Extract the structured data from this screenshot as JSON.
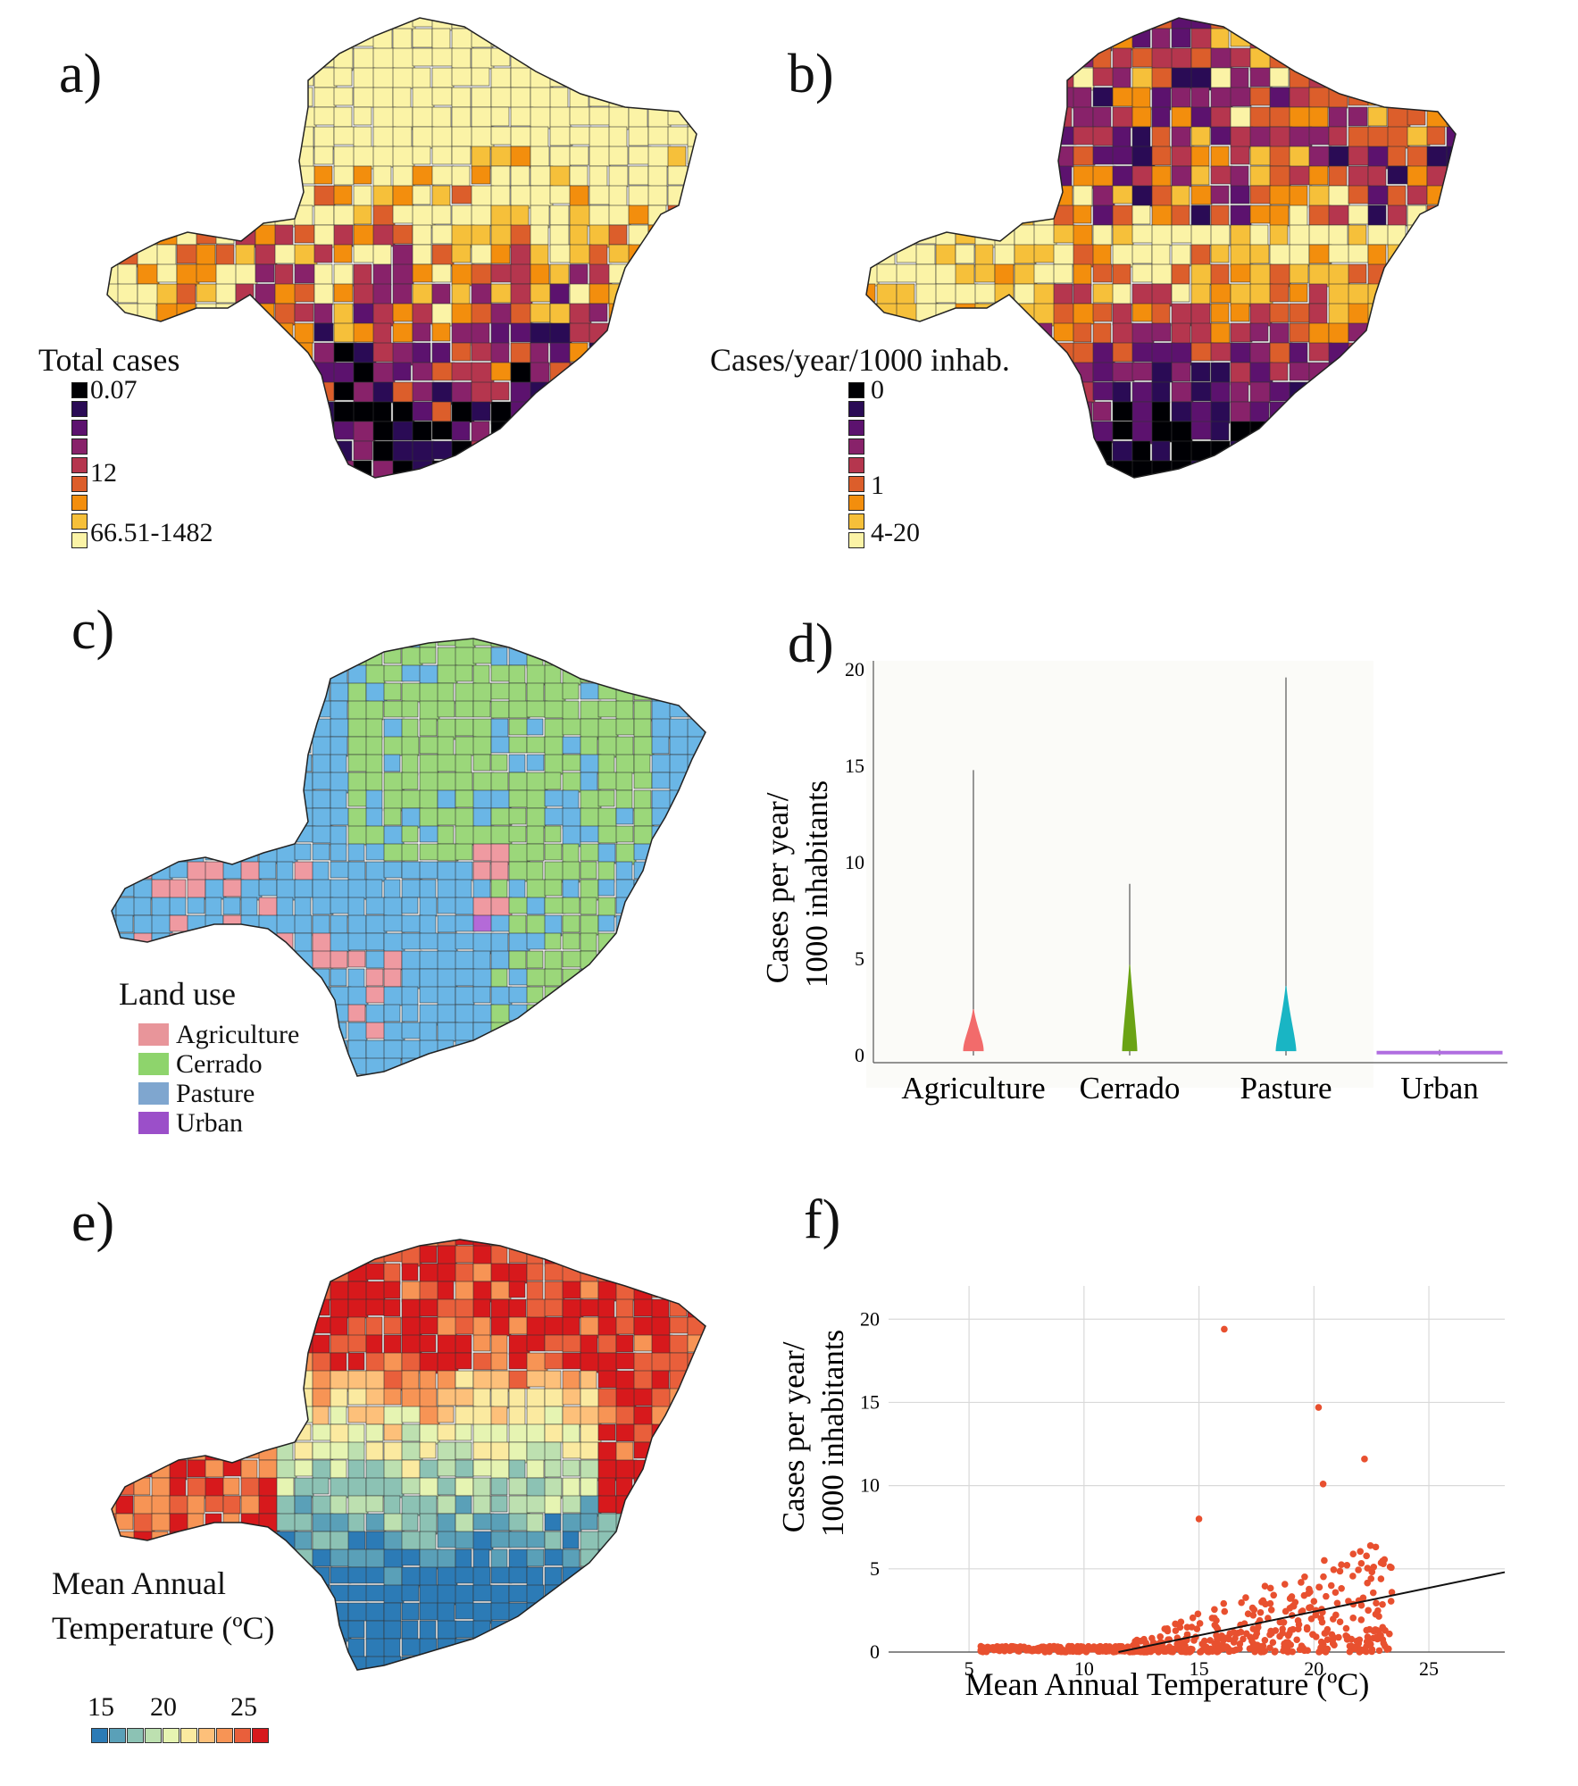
{
  "panels": {
    "a": {
      "label": "a)",
      "legend_title": "Total cases",
      "legend_labels": [
        "0.07",
        "12",
        "66.51-1482"
      ],
      "ramp": [
        "#000004",
        "#2a0b55",
        "#5c126e",
        "#88226a",
        "#b5364e",
        "#dc5e2b",
        "#f38e0d",
        "#f6c03a",
        "#fbf3a6"
      ]
    },
    "b": {
      "label": "b)",
      "legend_title": "Cases/year/1000 inhab.",
      "legend_labels": [
        "0",
        "1",
        "4-20"
      ],
      "ramp": [
        "#000004",
        "#2a0b55",
        "#5c126e",
        "#88226a",
        "#b5364e",
        "#dc5e2b",
        "#f38e0d",
        "#f6c03a",
        "#fbf3a6"
      ]
    },
    "c": {
      "label": "c)",
      "legend_title": "Land use",
      "categories": [
        {
          "name": "Agriculture",
          "color": "#e8959a"
        },
        {
          "name": "Cerrado",
          "color": "#8ed46c"
        },
        {
          "name": "Pasture",
          "color": "#7fa6cf"
        },
        {
          "name": "Urban",
          "color": "#9b4fc9"
        }
      ],
      "map_colors": {
        "pasture": "#6ab6e6",
        "cerrado": "#9bd77a",
        "agriculture": "#ef9aa1",
        "urban": "#b46ad8"
      }
    },
    "d": {
      "label": "d)"
    },
    "e": {
      "label": "e)",
      "legend_title_lines": [
        "Mean Annual",
        "Temperature (ºC)"
      ],
      "legend_labels": [
        "15",
        "20",
        "25"
      ],
      "ramp": [
        "#2c7bb6",
        "#5aa0b8",
        "#8cc2b4",
        "#bde0b0",
        "#e6f4b2",
        "#fbeaa0",
        "#fdc07a",
        "#f79455",
        "#e95f3b",
        "#d7191c"
      ]
    },
    "f": {
      "label": "f)"
    }
  },
  "chart_data": [
    {
      "panel": "d",
      "type": "violin",
      "ylabel_lines": [
        "Cases per year/",
        "1000 inhabitants"
      ],
      "categories": [
        "Agriculture",
        "Cerrado",
        "Pasture",
        "Urban"
      ],
      "colors": [
        "#f26b6b",
        "#6aa314",
        "#19b5c4",
        "#b06ee0"
      ],
      "max_values": [
        14.8,
        8.9,
        19.6,
        0.3
      ],
      "yticks": [
        0,
        5,
        10,
        15,
        20
      ],
      "ylim": [
        0,
        20
      ]
    },
    {
      "panel": "f",
      "type": "scatter",
      "xlabel": "Mean Annual Temperature (ºC)",
      "ylabel_lines": [
        "Cases per year/",
        "1000 inhabitants"
      ],
      "xticks": [
        5,
        10,
        15,
        20,
        25
      ],
      "yticks": [
        0,
        5,
        10,
        15,
        20
      ],
      "xlim": [
        1.5,
        28.3
      ],
      "ylim": [
        0,
        22
      ],
      "grid": true,
      "point_color": "#e8502f",
      "highlighted_points": [
        [
          16.1,
          19.4
        ],
        [
          20.2,
          14.7
        ],
        [
          22.2,
          11.6
        ],
        [
          20.4,
          10.1
        ],
        [
          15,
          8
        ]
      ],
      "trend_line": [
        [
          11.5,
          0
        ],
        [
          28.3,
          4.8
        ]
      ]
    }
  ]
}
